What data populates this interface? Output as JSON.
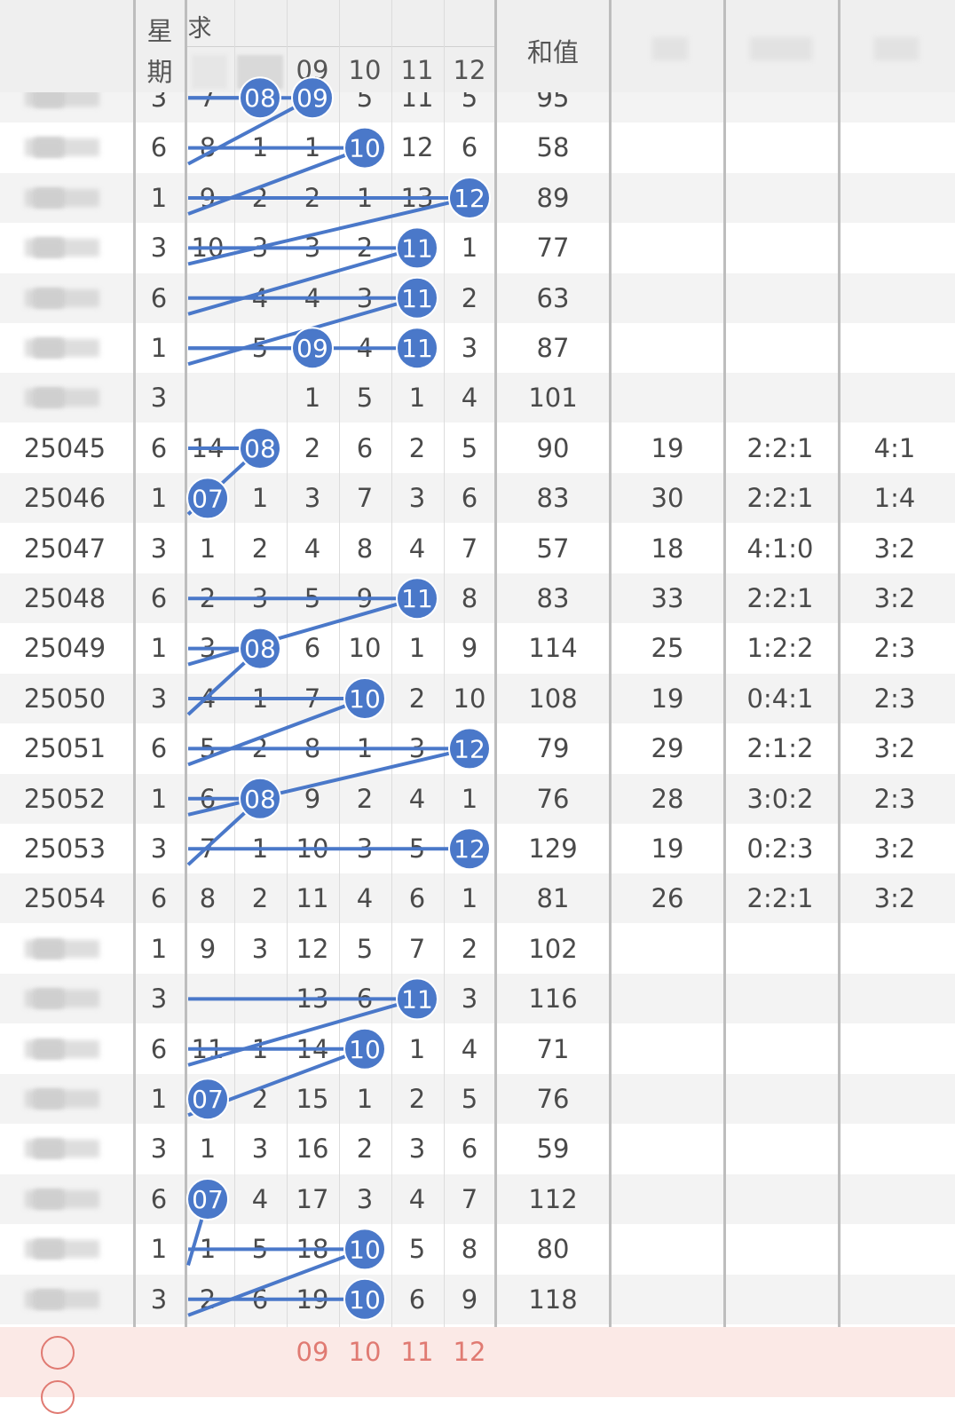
{
  "header": {
    "week_label_top": "星",
    "week_label_bottom": "期",
    "ball_label": "求",
    "sum_label": "和值",
    "ball_cols": [
      "",
      "",
      "09",
      "10",
      "11",
      "12"
    ]
  },
  "rows": [
    {
      "issue": "",
      "week": "3",
      "c1": "7",
      "c2": "08",
      "c3": "09",
      "c4": "5",
      "c5": "11",
      "c6": "5",
      "sum": "95",
      "span": "",
      "ratio": "",
      "oe": ""
    },
    {
      "issue": "",
      "week": "6",
      "c1": "8",
      "c2": "1",
      "c3": "1",
      "c4": "10",
      "c5": "12",
      "c6": "6",
      "sum": "58",
      "span": "",
      "ratio": "",
      "oe": ""
    },
    {
      "issue": "",
      "week": "1",
      "c1": "9",
      "c2": "2",
      "c3": "2",
      "c4": "1",
      "c5": "13",
      "c6": "12",
      "sum": "89",
      "span": "",
      "ratio": "",
      "oe": ""
    },
    {
      "issue": "",
      "week": "3",
      "c1": "10",
      "c2": "3",
      "c3": "3",
      "c4": "2",
      "c5": "11",
      "c6": "1",
      "sum": "77",
      "span": "",
      "ratio": "",
      "oe": ""
    },
    {
      "issue": "",
      "week": "6",
      "c1": "",
      "c2": "4",
      "c3": "4",
      "c4": "3",
      "c5": "11",
      "c6": "2",
      "sum": "63",
      "span": "",
      "ratio": "",
      "oe": ""
    },
    {
      "issue": "",
      "week": "1",
      "c1": "",
      "c2": "5",
      "c3": "09",
      "c4": "4",
      "c5": "11",
      "c6": "3",
      "sum": "87",
      "span": "",
      "ratio": "",
      "oe": ""
    },
    {
      "issue": "",
      "week": "3",
      "c1": "",
      "c2": "",
      "c3": "1",
      "c4": "5",
      "c5": "1",
      "c6": "4",
      "sum": "101",
      "span": "",
      "ratio": "",
      "oe": ""
    },
    {
      "issue": "25045",
      "week": "6",
      "c1": "14",
      "c2": "08",
      "c3": "2",
      "c4": "6",
      "c5": "2",
      "c6": "5",
      "sum": "90",
      "span": "19",
      "ratio": "2:2:1",
      "oe": "4:1"
    },
    {
      "issue": "25046",
      "week": "1",
      "c1": "07",
      "c2": "1",
      "c3": "3",
      "c4": "7",
      "c5": "3",
      "c6": "6",
      "sum": "83",
      "span": "30",
      "ratio": "2:2:1",
      "oe": "1:4"
    },
    {
      "issue": "25047",
      "week": "3",
      "c1": "1",
      "c2": "2",
      "c3": "4",
      "c4": "8",
      "c5": "4",
      "c6": "7",
      "sum": "57",
      "span": "18",
      "ratio": "4:1:0",
      "oe": "3:2"
    },
    {
      "issue": "25048",
      "week": "6",
      "c1": "2",
      "c2": "3",
      "c3": "5",
      "c4": "9",
      "c5": "11",
      "c6": "8",
      "sum": "83",
      "span": "33",
      "ratio": "2:2:1",
      "oe": "3:2"
    },
    {
      "issue": "25049",
      "week": "1",
      "c1": "3",
      "c2": "08",
      "c3": "6",
      "c4": "10",
      "c5": "1",
      "c6": "9",
      "sum": "114",
      "span": "25",
      "ratio": "1:2:2",
      "oe": "2:3"
    },
    {
      "issue": "25050",
      "week": "3",
      "c1": "4",
      "c2": "1",
      "c3": "7",
      "c4": "10",
      "c5": "2",
      "c6": "10",
      "sum": "108",
      "span": "19",
      "ratio": "0:4:1",
      "oe": "2:3"
    },
    {
      "issue": "25051",
      "week": "6",
      "c1": "5",
      "c2": "2",
      "c3": "8",
      "c4": "1",
      "c5": "3",
      "c6": "12",
      "sum": "79",
      "span": "29",
      "ratio": "2:1:2",
      "oe": "3:2"
    },
    {
      "issue": "25052",
      "week": "1",
      "c1": "6",
      "c2": "08",
      "c3": "9",
      "c4": "2",
      "c5": "4",
      "c6": "1",
      "sum": "76",
      "span": "28",
      "ratio": "3:0:2",
      "oe": "2:3"
    },
    {
      "issue": "25053",
      "week": "3",
      "c1": "7",
      "c2": "1",
      "c3": "10",
      "c4": "3",
      "c5": "5",
      "c6": "12",
      "sum": "129",
      "span": "19",
      "ratio": "0:2:3",
      "oe": "3:2"
    },
    {
      "issue": "25054",
      "week": "6",
      "c1": "8",
      "c2": "2",
      "c3": "11",
      "c4": "4",
      "c5": "6",
      "c6": "1",
      "sum": "81",
      "span": "26",
      "ratio": "2:2:1",
      "oe": "3:2"
    },
    {
      "issue": "",
      "week": "1",
      "c1": "9",
      "c2": "3",
      "c3": "12",
      "c4": "5",
      "c5": "7",
      "c6": "2",
      "sum": "102",
      "span": "",
      "ratio": "",
      "oe": ""
    },
    {
      "issue": "",
      "week": "3",
      "c1": "",
      "c2": "",
      "c3": "13",
      "c4": "6",
      "c5": "11",
      "c6": "3",
      "sum": "116",
      "span": "",
      "ratio": "",
      "oe": ""
    },
    {
      "issue": "",
      "week": "6",
      "c1": "11",
      "c2": "1",
      "c3": "14",
      "c4": "10",
      "c5": "1",
      "c6": "4",
      "sum": "71",
      "span": "",
      "ratio": "",
      "oe": ""
    },
    {
      "issue": "",
      "week": "1",
      "c1": "07",
      "c2": "2",
      "c3": "15",
      "c4": "1",
      "c5": "2",
      "c6": "5",
      "sum": "76",
      "span": "",
      "ratio": "",
      "oe": ""
    },
    {
      "issue": "",
      "week": "3",
      "c1": "1",
      "c2": "3",
      "c3": "16",
      "c4": "2",
      "c5": "3",
      "c6": "6",
      "sum": "59",
      "span": "",
      "ratio": "",
      "oe": ""
    },
    {
      "issue": "",
      "week": "6",
      "c1": "07",
      "c2": "4",
      "c3": "17",
      "c4": "3",
      "c5": "4",
      "c6": "7",
      "sum": "112",
      "span": "",
      "ratio": "",
      "oe": ""
    },
    {
      "issue": "",
      "week": "1",
      "c1": "1",
      "c2": "5",
      "c3": "18",
      "c4": "10",
      "c5": "5",
      "c6": "8",
      "sum": "80",
      "span": "",
      "ratio": "",
      "oe": ""
    },
    {
      "issue": "",
      "week": "3",
      "c1": "2",
      "c2": "6",
      "c3": "19",
      "c4": "10",
      "c5": "6",
      "c6": "9",
      "sum": "118",
      "span": "",
      "ratio": "",
      "oe": ""
    }
  ],
  "hits": [
    {
      "row": 0,
      "col": 2,
      "label": "08"
    },
    {
      "row": 0,
      "col": 3,
      "label": "09"
    },
    {
      "row": 1,
      "col": 4,
      "label": "10"
    },
    {
      "row": 2,
      "col": 6,
      "label": "12"
    },
    {
      "row": 3,
      "col": 5,
      "label": "11"
    },
    {
      "row": 4,
      "col": 5,
      "label": "11"
    },
    {
      "row": 5,
      "col": 3,
      "label": "09"
    },
    {
      "row": 5,
      "col": 5,
      "label": "11"
    },
    {
      "row": 7,
      "col": 2,
      "label": "08"
    },
    {
      "row": 8,
      "col": 1,
      "label": "07"
    },
    {
      "row": 10,
      "col": 5,
      "label": "11"
    },
    {
      "row": 11,
      "col": 2,
      "label": "08"
    },
    {
      "row": 12,
      "col": 4,
      "label": "10"
    },
    {
      "row": 13,
      "col": 6,
      "label": "12"
    },
    {
      "row": 14,
      "col": 2,
      "label": "08"
    },
    {
      "row": 15,
      "col": 6,
      "label": "12"
    },
    {
      "row": 18,
      "col": 5,
      "label": "11"
    },
    {
      "row": 19,
      "col": 4,
      "label": "10"
    },
    {
      "row": 20,
      "col": 1,
      "label": "07"
    },
    {
      "row": 22,
      "col": 1,
      "label": "07"
    },
    {
      "row": 23,
      "col": 4,
      "label": "10"
    },
    {
      "row": 24,
      "col": 4,
      "label": "10"
    }
  ],
  "footer": {
    "ball_cols": [
      "",
      "",
      "09",
      "10",
      "11",
      "12"
    ]
  },
  "colors": {
    "hit_ball": "#4a78c9",
    "trend_line": "#4a78c9",
    "footer_bg": "#fbe9e6",
    "footer_text": "#e07a72"
  }
}
